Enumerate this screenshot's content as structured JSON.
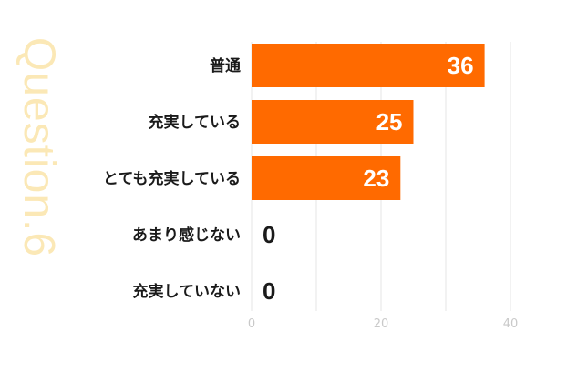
{
  "side_title": "Question.6",
  "chart_data": {
    "type": "bar",
    "orientation": "horizontal",
    "categories": [
      "普通",
      "充実している",
      "とても充実している",
      "あまり感じない",
      "充実していない"
    ],
    "values": [
      36,
      25,
      23,
      0,
      0
    ],
    "value_labels": [
      "36",
      "25",
      "23",
      "0",
      "0"
    ],
    "xlim": [
      0,
      40
    ],
    "xticks": [
      0,
      20,
      40
    ],
    "xtick_labels": [
      "0",
      "20",
      "40"
    ],
    "grid": true,
    "bar_color": "#ff6a00",
    "grid_color": "#e6e6e6",
    "title": "",
    "xlabel": "",
    "ylabel": ""
  }
}
